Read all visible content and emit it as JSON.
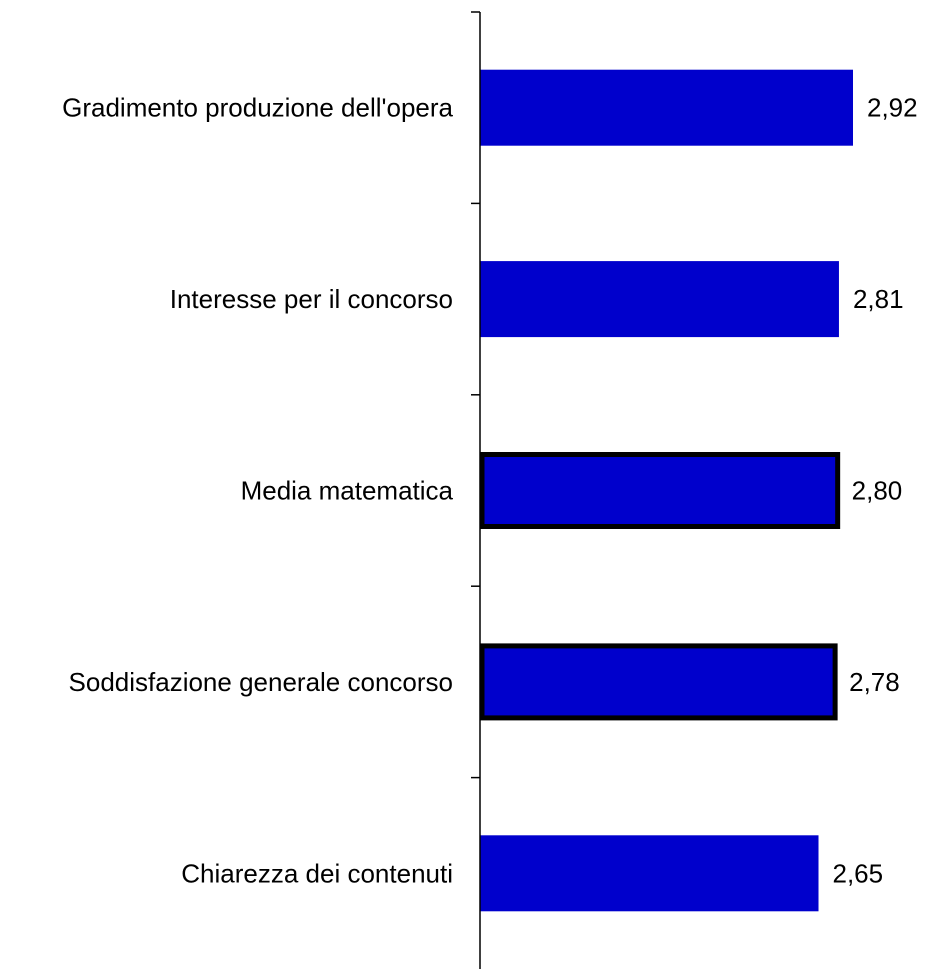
{
  "chart_data": {
    "type": "bar",
    "orientation": "horizontal",
    "categories": [
      "Gradimento produzione dell'opera",
      "Interesse per il concorso",
      "Media matematica",
      "Soddisfazione generale concorso",
      "Chiarezza dei contenuti"
    ],
    "values": [
      2.92,
      2.81,
      2.8,
      2.78,
      2.65
    ],
    "value_labels": [
      "2,92",
      "2,81",
      "2,80",
      "2,78",
      "2,65"
    ],
    "highlighted": [
      false,
      false,
      true,
      true,
      false
    ],
    "xlim": [
      0,
      3.05
    ],
    "title": "",
    "xlabel": "",
    "ylabel": "",
    "grid": false,
    "legend": "none",
    "colors": {
      "bar": "#0000CC",
      "highlight_border": "#000000",
      "axis": "#000000",
      "text": "#000000"
    }
  }
}
